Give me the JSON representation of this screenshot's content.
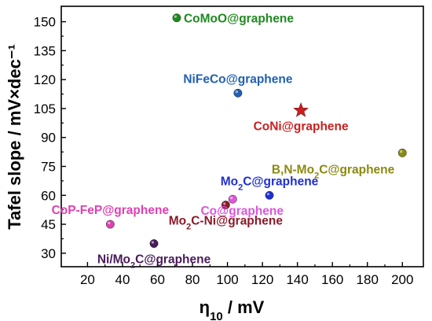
{
  "chart_data": {
    "type": "scatter",
    "title": "",
    "xlabel": "η10 / mV",
    "xlabel_main": "η",
    "xlabel_sub": "10",
    "xlabel_unit": " / mV",
    "ylabel": "Tafel slope / mV×dec⁻¹",
    "xlim": [
      5,
      212
    ],
    "ylim": [
      23,
      158
    ],
    "x_ticks": [
      20,
      40,
      60,
      80,
      100,
      120,
      140,
      160,
      180,
      200
    ],
    "y_ticks": [
      30,
      45,
      60,
      75,
      90,
      105,
      120,
      135,
      150
    ],
    "grid": false,
    "legend": "none",
    "series": [
      {
        "label": "CoMoO@graphene",
        "x": 71,
        "y": 152,
        "marker": "circle",
        "color": "#1f8a1f",
        "label_pos": "right"
      },
      {
        "label": "NiFeCo@graphene",
        "x": 106,
        "y": 113,
        "marker": "circle",
        "color": "#2060b0",
        "label_pos": "above"
      },
      {
        "label": "CoNi@graphene",
        "x": 142,
        "y": 104,
        "marker": "star",
        "color": "#cc2020",
        "label_pos": "below"
      },
      {
        "label": "B,N-Mo2C@graphene",
        "label_main": "B,N-Mo",
        "label_sub": "2",
        "label_rest": "C@graphene",
        "x": 200,
        "y": 82,
        "marker": "circle",
        "color": "#8a8a10",
        "label_pos": "below-left"
      },
      {
        "label": "Mo2C@graphene",
        "label_main": "Mo",
        "label_sub": "2",
        "label_rest": "C@graphene",
        "x": 124,
        "y": 60,
        "marker": "circle",
        "color": "#1f2fd0",
        "label_pos": "above"
      },
      {
        "label": "Co@graphene",
        "x": 103,
        "y": 58,
        "marker": "circle",
        "color": "#dd55dd",
        "label_pos": "below-right"
      },
      {
        "label": "Mo2C-Ni@graphene",
        "label_main": "Mo",
        "label_sub": "2",
        "label_rest": "C-Ni@graphene",
        "x": 99,
        "y": 55,
        "marker": "circle",
        "color": "#8b1a2a",
        "label_pos": "below"
      },
      {
        "label": "CoP-FeP@graphene",
        "x": 33,
        "y": 45,
        "marker": "circle",
        "color": "#e040b0",
        "label_pos": "above"
      },
      {
        "label": "Ni/Mo2C@graphene",
        "label_main": "Ni/Mo",
        "label_sub": "2",
        "label_rest": "C@graphene",
        "x": 58,
        "y": 35,
        "marker": "circle",
        "color": "#4a1a5a",
        "label_pos": "below"
      }
    ]
  }
}
